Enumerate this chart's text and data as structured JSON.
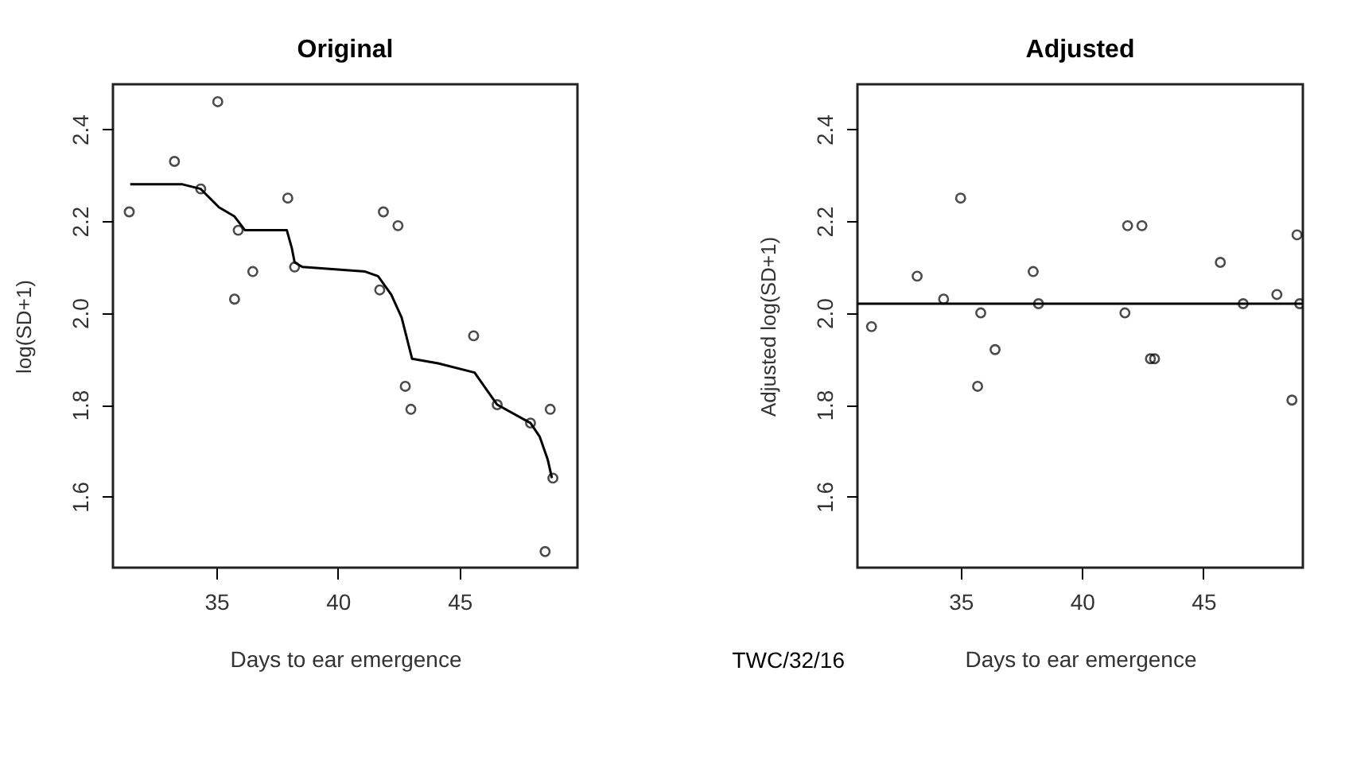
{
  "chart_data": [
    {
      "type": "scatter",
      "title": "Original",
      "xlabel": "Days to ear emergence",
      "ylabel": "log(SD+1)",
      "xlim": [
        30.75,
        49.85
      ],
      "xticks": [
        35,
        40,
        45
      ],
      "ylim": [
        1.445,
        2.498
      ],
      "yticks": [
        1.6,
        1.8,
        {
          "value": 2.0,
          "label": "2.0"
        },
        2.2,
        2.4
      ],
      "grid": false,
      "legend": false,
      "series": [
        {
          "marker": "circle",
          "color": "#000000",
          "x": [
            31.42,
            33.28,
            35.06,
            34.36,
            35.9,
            35.75,
            36.5,
            37.94,
            38.22,
            41.87,
            42.47,
            41.72,
            45.58,
            42.77,
            43.0,
            46.55,
            47.92,
            48.73,
            48.84,
            48.52
          ],
          "values": [
            2.22,
            2.33,
            2.46,
            2.27,
            2.18,
            2.03,
            2.09,
            2.25,
            2.1,
            2.22,
            2.19,
            2.05,
            1.95,
            1.84,
            1.79,
            1.8,
            1.76,
            1.79,
            1.64,
            1.48
          ]
        },
        {
          "type": "line",
          "marker": "none",
          "line_style": "solid",
          "color": "#000000",
          "x": [
            31.46,
            33.61,
            34.36,
            35.11,
            35.75,
            36.18,
            37.9,
            38.11,
            38.22,
            38.54,
            41.12,
            41.65,
            42.19,
            42.62,
            43.05,
            44.12,
            45.62,
            46.55,
            47.92,
            48.3,
            48.63,
            48.8
          ],
          "values": [
            2.28,
            2.28,
            2.27,
            2.23,
            2.21,
            2.18,
            2.18,
            2.14,
            2.11,
            2.1,
            2.09,
            2.08,
            2.04,
            1.99,
            1.9,
            1.89,
            1.87,
            1.8,
            1.76,
            1.73,
            1.68,
            1.64
          ]
        }
      ]
    },
    {
      "type": "scatter",
      "title": "Adjusted",
      "xlabel": "Days to ear emergence",
      "ylabel": "Adjusted log(SD+1)",
      "xlim": [
        30.75,
        49.1
      ],
      "xticks": [
        35,
        40,
        45
      ],
      "ylim": [
        1.445,
        2.498
      ],
      "yticks": [
        1.6,
        1.8,
        {
          "value": 2.0,
          "label": "2.0"
        },
        2.2,
        2.4
      ],
      "grid": false,
      "legend": false,
      "annotations": [
        "TWC/32/16"
      ],
      "series": [
        {
          "marker": "circle",
          "color": "#000000",
          "x": [
            31.33,
            33.21,
            34.3,
            35.0,
            35.83,
            35.7,
            36.42,
            37.99,
            38.21,
            41.88,
            42.47,
            41.77,
            42.82,
            42.99,
            45.7,
            46.64,
            48.03,
            48.86,
            48.97,
            48.65
          ],
          "values": [
            1.97,
            2.08,
            2.03,
            2.25,
            2.0,
            1.84,
            1.92,
            2.09,
            2.02,
            2.19,
            2.19,
            2.0,
            1.9,
            1.9,
            2.11,
            2.02,
            2.04,
            2.17,
            2.02,
            1.81
          ]
        },
        {
          "type": "line",
          "marker": "none",
          "line_style": "solid",
          "color": "#000000",
          "x": [
            30.75,
            49.1
          ],
          "values": [
            2.02,
            2.02
          ]
        }
      ]
    }
  ]
}
